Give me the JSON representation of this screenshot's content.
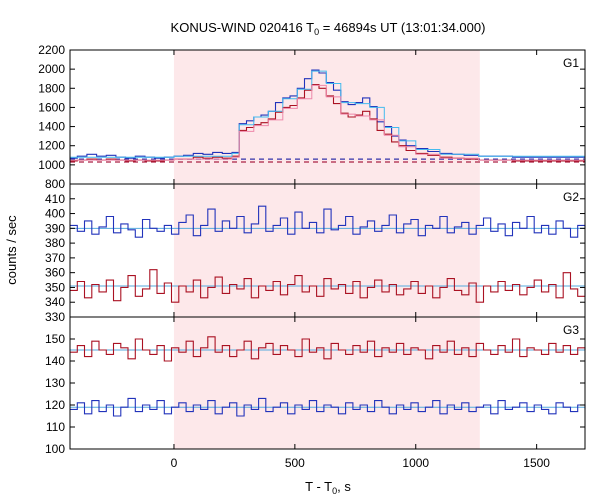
{
  "chart_data": {
    "type": "line",
    "title_prefix": "KONUS-WIND 020416 T",
    "title_sub": "0",
    "title_suffix": " = 46894s UT (13:01:34.000)",
    "xlabel_prefix": "T - T",
    "xlabel_sub": "0",
    "xlabel_suffix": ", s",
    "ylabel": "counts / sec",
    "xlim": [
      -430,
      1700
    ],
    "xticks": [
      "0",
      "500",
      "1000",
      "1500"
    ],
    "shaded_interval": [
      0,
      1265
    ],
    "colors": {
      "shade": "#fde8ea",
      "blue": "#2233bb",
      "red": "#aa1122",
      "cyan": "#44bbee",
      "pink": "#ee88aa",
      "dashed_blue": "#3333aa",
      "dashed_red": "#aa2244",
      "fit": "#55aadd"
    },
    "panels": [
      {
        "label": "G1",
        "ylim": [
          800,
          2200
        ],
        "yticks": [
          "800",
          "1000",
          "1200",
          "1400",
          "1600",
          "1800",
          "2000",
          "2200"
        ],
        "baseline_blue": 1060,
        "baseline_red": 1030,
        "series": [
          {
            "name": "blue",
            "color": "blue",
            "x": [
              -430,
              -400,
              -360,
              -320,
              -280,
              -240,
              -200,
              -160,
              -120,
              -80,
              -40,
              0,
              40,
              80,
              120,
              160,
              200,
              240,
              270,
              300,
              330,
              360,
              390,
              420,
              450,
              480,
              510,
              540,
              570,
              600,
              630,
              660,
              690,
              720,
              750,
              780,
              810,
              840,
              870,
              900,
              930,
              960,
              1000,
              1050,
              1100,
              1150,
              1200,
              1260,
              1320,
              1400,
              1500,
              1600,
              1700
            ],
            "y": [
              1070,
              1090,
              1110,
              1090,
              1100,
              1080,
              1070,
              1090,
              1080,
              1070,
              1080,
              1090,
              1100,
              1120,
              1110,
              1130,
              1120,
              1130,
              1430,
              1460,
              1500,
              1520,
              1560,
              1650,
              1700,
              1720,
              1800,
              1900,
              1990,
              1960,
              1860,
              1780,
              1660,
              1630,
              1650,
              1700,
              1610,
              1450,
              1400,
              1300,
              1260,
              1200,
              1170,
              1140,
              1120,
              1110,
              1100,
              1090,
              1090,
              1080,
              1080,
              1080,
              1080
            ]
          },
          {
            "name": "red",
            "color": "red",
            "x": [
              -430,
              -400,
              -360,
              -320,
              -280,
              -240,
              -200,
              -160,
              -120,
              -80,
              -40,
              0,
              40,
              80,
              120,
              160,
              200,
              240,
              270,
              300,
              330,
              360,
              390,
              420,
              450,
              480,
              510,
              540,
              570,
              600,
              630,
              660,
              690,
              720,
              750,
              780,
              810,
              840,
              870,
              900,
              930,
              960,
              1000,
              1050,
              1100,
              1150,
              1200,
              1260,
              1320,
              1400,
              1500,
              1600,
              1700
            ],
            "y": [
              1040,
              1050,
              1060,
              1050,
              1060,
              1050,
              1040,
              1050,
              1040,
              1040,
              1050,
              1060,
              1060,
              1080,
              1070,
              1080,
              1070,
              1090,
              1360,
              1390,
              1420,
              1440,
              1480,
              1550,
              1600,
              1620,
              1700,
              1780,
              1840,
              1800,
              1720,
              1640,
              1540,
              1500,
              1520,
              1560,
              1480,
              1360,
              1320,
              1240,
              1200,
              1150,
              1120,
              1100,
              1080,
              1070,
              1060,
              1050,
              1050,
              1040,
              1040,
              1040,
              1040
            ]
          },
          {
            "name": "cyan",
            "color": "cyan",
            "x": [
              -430,
              0,
              240,
              270,
              330,
              390,
              450,
              510,
              570,
              630,
              690,
              750,
              810,
              870,
              930,
              1000,
              1100,
              1260,
              1700
            ],
            "y": [
              1080,
              1090,
              1120,
              1420,
              1500,
              1560,
              1690,
              1790,
              1980,
              1850,
              1650,
              1640,
              1600,
              1390,
              1250,
              1160,
              1110,
              1090,
              1080
            ]
          },
          {
            "name": "pink",
            "color": "pink",
            "x": [
              -430,
              0,
              240,
              270,
              330,
              390,
              450,
              510,
              570,
              630,
              690,
              750,
              810,
              870,
              930,
              1000,
              1100,
              1260,
              1700
            ],
            "y": [
              1050,
              1060,
              1080,
              1350,
              1410,
              1470,
              1590,
              1690,
              1830,
              1710,
              1530,
              1510,
              1470,
              1310,
              1190,
              1110,
              1070,
              1050,
              1040
            ]
          }
        ]
      },
      {
        "label": "G2",
        "ylim": [
          330,
          420
        ],
        "yticks": [
          "330",
          "340",
          "350",
          "360",
          "370",
          "380",
          "390",
          "400",
          "410"
        ],
        "fits": [
          390,
          351
        ],
        "series": [
          {
            "name": "blue",
            "color": "blue",
            "x": [
              -430,
              -400,
              -370,
              -340,
              -310,
              -280,
              -250,
              -220,
              -190,
              -160,
              -130,
              -100,
              -70,
              -40,
              -10,
              20,
              50,
              80,
              110,
              140,
              170,
              200,
              230,
              260,
              290,
              320,
              350,
              380,
              410,
              440,
              470,
              500,
              530,
              560,
              590,
              620,
              650,
              680,
              710,
              740,
              770,
              800,
              830,
              860,
              890,
              920,
              950,
              980,
              1010,
              1040,
              1070,
              1100,
              1130,
              1160,
              1190,
              1220,
              1250,
              1280,
              1310,
              1340,
              1370,
              1400,
              1430,
              1460,
              1490,
              1520,
              1550,
              1580,
              1610,
              1640,
              1670,
              1700
            ],
            "y": [
              392,
              388,
              395,
              386,
              391,
              398,
              387,
              393,
              389,
              384,
              396,
              390,
              388,
              392,
              386,
              394,
              399,
              385,
              392,
              403,
              388,
              395,
              390,
              398,
              387,
              393,
              405,
              388,
              392,
              397,
              386,
              401,
              390,
              394,
              387,
              403,
              389,
              392,
              398,
              386,
              391,
              395,
              388,
              392,
              399,
              387,
              393,
              396,
              385,
              392,
              390,
              398,
              387,
              391,
              394,
              386,
              392,
              397,
              388,
              393,
              385,
              394,
              390,
              398,
              387,
              392,
              386,
              395,
              390,
              384,
              392,
              390
            ]
          },
          {
            "name": "red",
            "color": "red",
            "x": [
              -430,
              -400,
              -370,
              -340,
              -310,
              -280,
              -250,
              -220,
              -190,
              -160,
              -130,
              -100,
              -70,
              -40,
              -10,
              20,
              50,
              80,
              110,
              140,
              170,
              200,
              230,
              260,
              290,
              320,
              350,
              380,
              410,
              440,
              470,
              500,
              530,
              560,
              590,
              620,
              650,
              680,
              710,
              740,
              770,
              800,
              830,
              860,
              890,
              920,
              950,
              980,
              1010,
              1040,
              1070,
              1100,
              1130,
              1160,
              1190,
              1220,
              1250,
              1280,
              1310,
              1340,
              1370,
              1400,
              1430,
              1460,
              1490,
              1520,
              1550,
              1580,
              1610,
              1640,
              1670,
              1700
            ],
            "y": [
              348,
              354,
              343,
              352,
              347,
              355,
              341,
              350,
              358,
              344,
              349,
              362,
              346,
              353,
              340,
              351,
              347,
              355,
              343,
              350,
              357,
              346,
              352,
              349,
              356,
              343,
              351,
              348,
              354,
              345,
              352,
              358,
              347,
              351,
              344,
              356,
              349,
              352,
              346,
              354,
              343,
              350,
              355,
              347,
              352,
              345,
              349,
              354,
              346,
              351,
              343,
              350,
              356,
              348,
              345,
              353,
              340,
              351,
              347,
              354,
              348,
              352,
              345,
              350,
              355,
              347,
              352,
              343,
              360,
              349,
              344,
              350
            ]
          }
        ]
      },
      {
        "label": "G3",
        "ylim": [
          100,
          160
        ],
        "yticks": [
          "100",
          "110",
          "120",
          "130",
          "140",
          "150"
        ],
        "fits": [
          145,
          119
        ],
        "series": [
          {
            "name": "red",
            "color": "red",
            "x": [
              -430,
              -400,
              -370,
              -340,
              -310,
              -280,
              -250,
              -220,
              -190,
              -160,
              -130,
              -100,
              -70,
              -40,
              -10,
              20,
              50,
              80,
              110,
              140,
              170,
              200,
              230,
              260,
              290,
              320,
              350,
              380,
              410,
              440,
              470,
              500,
              530,
              560,
              590,
              620,
              650,
              680,
              710,
              740,
              770,
              800,
              830,
              860,
              890,
              920,
              950,
              980,
              1010,
              1040,
              1070,
              1100,
              1130,
              1160,
              1190,
              1220,
              1250,
              1280,
              1310,
              1340,
              1370,
              1400,
              1430,
              1460,
              1490,
              1520,
              1550,
              1580,
              1610,
              1640,
              1670,
              1700
            ],
            "y": [
              144,
              147,
              142,
              149,
              145,
              143,
              148,
              146,
              141,
              150,
              145,
              143,
              147,
              140,
              146,
              144,
              149,
              142,
              146,
              151,
              144,
              147,
              142,
              145,
              149,
              141,
              146,
              148,
              143,
              147,
              145,
              142,
              150,
              144,
              146,
              141,
              148,
              145,
              143,
              147,
              144,
              149,
              142,
              146,
              144,
              148,
              143,
              146,
              145,
              141,
              147,
              144,
              149,
              143,
              146,
              142,
              148,
              145,
              143,
              147,
              144,
              150,
              142,
              146,
              145,
              143,
              148,
              144,
              147,
              143,
              146,
              145
            ]
          },
          {
            "name": "blue",
            "color": "blue",
            "x": [
              -430,
              -400,
              -370,
              -340,
              -310,
              -280,
              -250,
              -220,
              -190,
              -160,
              -130,
              -100,
              -70,
              -40,
              -10,
              20,
              50,
              80,
              110,
              140,
              170,
              200,
              230,
              260,
              290,
              320,
              350,
              380,
              410,
              440,
              470,
              500,
              530,
              560,
              590,
              620,
              650,
              680,
              710,
              740,
              770,
              800,
              830,
              860,
              890,
              920,
              950,
              980,
              1010,
              1040,
              1070,
              1100,
              1130,
              1160,
              1190,
              1220,
              1250,
              1280,
              1310,
              1340,
              1370,
              1400,
              1430,
              1460,
              1490,
              1520,
              1550,
              1580,
              1610,
              1640,
              1670,
              1700
            ],
            "y": [
              118,
              121,
              116,
              122,
              117,
              120,
              115,
              119,
              123,
              117,
              120,
              118,
              122,
              116,
              119,
              121,
              117,
              120,
              118,
              122,
              116,
              119,
              121,
              115,
              120,
              118,
              123,
              117,
              119,
              121,
              116,
              120,
              118,
              122,
              117,
              120,
              119,
              116,
              121,
              118,
              120,
              117,
              122,
              119,
              116,
              120,
              118,
              121,
              117,
              119,
              122,
              116,
              120,
              118,
              121,
              117,
              119,
              120,
              116,
              122,
              118,
              119,
              121,
              117,
              120,
              118,
              116,
              121,
              119,
              117,
              120,
              118
            ]
          }
        ]
      }
    ]
  }
}
